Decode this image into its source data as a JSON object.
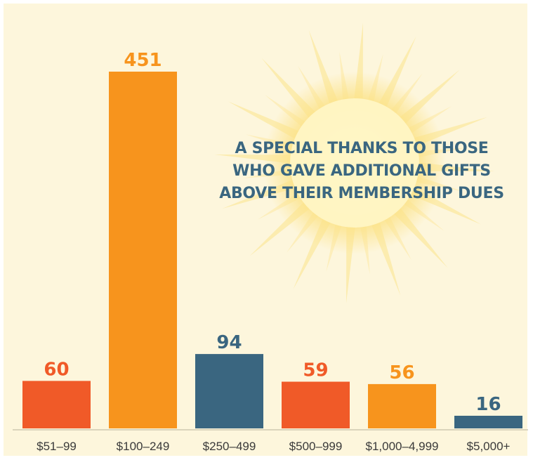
{
  "chart_data": {
    "type": "bar",
    "title_lines": [
      "A SPECIAL THANKS TO THOSE",
      "WHO GAVE ADDITIONAL GIFTS",
      "ABOVE THEIR MEMBERSHIP DUES"
    ],
    "categories": [
      "$51–99",
      "$100–249",
      "$250–499",
      "$500–999",
      "$1,000–4,999",
      "$5,000+"
    ],
    "values": [
      60,
      451,
      94,
      59,
      56,
      16
    ],
    "value_labels": [
      "60",
      "451",
      "94",
      "59",
      "56",
      "16"
    ],
    "bar_colors": [
      "#f05a28",
      "#f7941d",
      "#3a6680",
      "#f05a28",
      "#f7941d",
      "#3a6680"
    ],
    "ylim": [
      0,
      451
    ],
    "grid": false,
    "legend": "none"
  },
  "colors": {
    "background": "#fdf6dc",
    "title": "#3a6680",
    "sun_core": "#fff6c6",
    "sun_rays": "#fce38a",
    "tick_label": "#3a3a3a"
  },
  "decoration": {
    "sun": "sun-icon"
  }
}
